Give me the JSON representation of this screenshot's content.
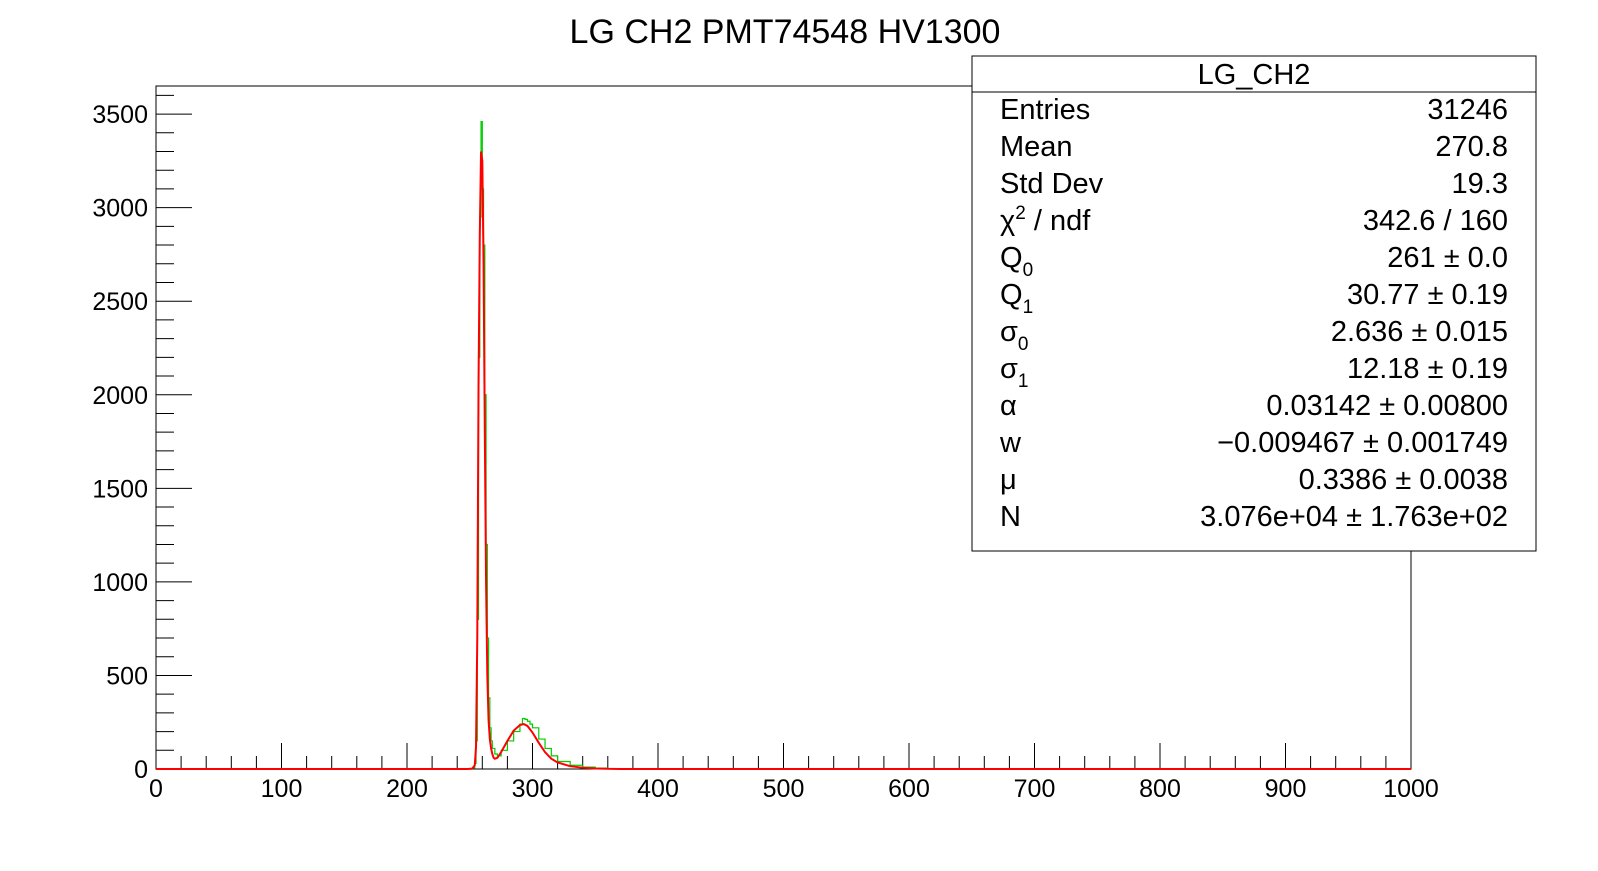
{
  "chart_data": {
    "type": "line",
    "title": "LG CH2 PMT74548 HV1300",
    "xlabel": "",
    "ylabel": "",
    "xlim": [
      0,
      1000
    ],
    "ylim": [
      0,
      3650
    ],
    "x_ticks": [
      "0",
      "100",
      "200",
      "300",
      "400",
      "500",
      "600",
      "700",
      "800",
      "900",
      "1000"
    ],
    "x_tick_values": [
      0,
      100,
      200,
      300,
      400,
      500,
      600,
      700,
      800,
      900,
      1000
    ],
    "y_ticks": [
      "0",
      "500",
      "1000",
      "1500",
      "2000",
      "2500",
      "3000",
      "3500"
    ],
    "y_tick_values": [
      0,
      500,
      1000,
      1500,
      2000,
      2500,
      3000,
      3500
    ],
    "grid": false,
    "series": [
      {
        "color": "#00cc00",
        "style": "histogram",
        "x": [
          0,
          250,
          252,
          254,
          255,
          256,
          257,
          258,
          259,
          260,
          261,
          262,
          263,
          264,
          265,
          266,
          267,
          268,
          270,
          272,
          275,
          280,
          285,
          290,
          292,
          294,
          296,
          298,
          300,
          305,
          310,
          315,
          320,
          330,
          340,
          350,
          360,
          370,
          420,
          1000
        ],
        "y": [
          0,
          0,
          5,
          30,
          150,
          800,
          2200,
          2950,
          3460,
          3100,
          2800,
          2000,
          1200,
          700,
          380,
          220,
          150,
          110,
          80,
          70,
          100,
          150,
          200,
          240,
          270,
          265,
          255,
          240,
          220,
          160,
          110,
          70,
          40,
          20,
          10,
          5,
          2,
          1,
          0,
          0
        ]
      },
      {
        "color": "#ff0000",
        "style": "line",
        "x": [
          0,
          248,
          252,
          254,
          255,
          256,
          257,
          258,
          259,
          260,
          261,
          262,
          263,
          264,
          265,
          266,
          267,
          268,
          269,
          270,
          272,
          275,
          280,
          285,
          290,
          293,
          296,
          300,
          305,
          310,
          315,
          320,
          330,
          340,
          350,
          360,
          370,
          1000
        ],
        "y": [
          0,
          0,
          2,
          20,
          120,
          700,
          2050,
          2850,
          3300,
          3250,
          2700,
          1800,
          1000,
          500,
          260,
          160,
          110,
          80,
          60,
          55,
          60,
          90,
          150,
          205,
          235,
          240,
          230,
          195,
          140,
          90,
          55,
          35,
          15,
          7,
          3,
          1,
          0,
          0
        ]
      }
    ],
    "legend": "none",
    "stats_box": {
      "placement": "top-right",
      "header": "LG_CH2",
      "rows": [
        {
          "label": "Entries",
          "sub": "",
          "sup": "",
          "suffix": "",
          "value": "31246"
        },
        {
          "label": "Mean",
          "sub": "",
          "sup": "",
          "suffix": "",
          "value": "270.8"
        },
        {
          "label": "Std Dev",
          "sub": "",
          "sup": "",
          "suffix": "",
          "value": "19.3"
        },
        {
          "label": "χ",
          "sub": "",
          "sup": "2",
          "suffix": " / ndf",
          "value": "342.6 / 160"
        },
        {
          "label": "Q",
          "sub": "0",
          "sup": "",
          "suffix": "",
          "value": "261 ± 0.0"
        },
        {
          "label": "Q",
          "sub": "1",
          "sup": "",
          "suffix": "",
          "value": "30.77 ± 0.19"
        },
        {
          "label": "σ",
          "sub": "0",
          "sup": "",
          "suffix": "",
          "value": "2.636 ± 0.015"
        },
        {
          "label": "σ",
          "sub": "1",
          "sup": "",
          "suffix": "",
          "value": "12.18 ± 0.19"
        },
        {
          "label": "α",
          "sub": "",
          "sup": "",
          "suffix": "",
          "value": "0.03142 ± 0.00800"
        },
        {
          "label": "w",
          "sub": "",
          "sup": "",
          "suffix": "",
          "value": "−0.009467 ± 0.001749"
        },
        {
          "label": "μ",
          "sub": "",
          "sup": "",
          "suffix": "",
          "value": "0.3386 ± 0.0038"
        },
        {
          "label": "N",
          "sub": "",
          "sup": "",
          "suffix": "",
          "value": "3.076e+04 ± 1.763e+02"
        }
      ]
    }
  }
}
